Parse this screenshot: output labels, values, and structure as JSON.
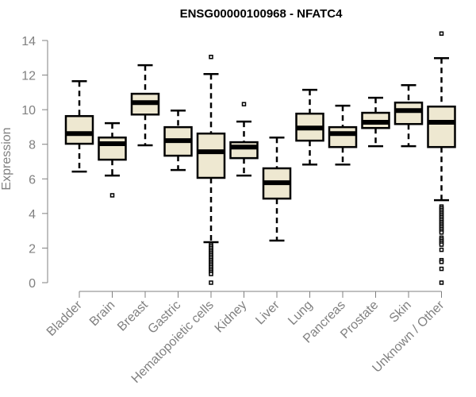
{
  "chart_data": {
    "type": "box",
    "title": "ENSG00000100968 - NFATC4",
    "xlabel": "",
    "ylabel": "Expression",
    "ylim": [
      0,
      14
    ],
    "yticks": [
      0,
      2,
      4,
      6,
      8,
      10,
      12,
      14
    ],
    "grid": false,
    "legend": "none",
    "box_fill": "#EEE8D1",
    "box_stroke": "#000000",
    "axis_color": "#808080",
    "categories": [
      "Bladder",
      "Brain",
      "Breast",
      "Gastric",
      "Hematopoietic cells",
      "Kidney",
      "Liver",
      "Lung",
      "Pancreas",
      "Prostate",
      "Skin",
      "Unknown / Other"
    ],
    "boxes": [
      {
        "name": "Bladder",
        "whisker_low": 6.42,
        "q1": 8.03,
        "median": 8.62,
        "q3": 9.63,
        "whisker_high": 11.65,
        "outliers": []
      },
      {
        "name": "Brain",
        "whisker_low": 6.19,
        "q1": 7.11,
        "median": 8.03,
        "q3": 8.39,
        "whisker_high": 9.22,
        "outliers": [
          5.05
        ]
      },
      {
        "name": "Breast",
        "whisker_low": 7.94,
        "q1": 9.72,
        "median": 10.41,
        "q3": 10.92,
        "whisker_high": 12.57,
        "outliers": []
      },
      {
        "name": "Gastric",
        "whisker_low": 6.51,
        "q1": 7.34,
        "median": 8.21,
        "q3": 8.99,
        "whisker_high": 9.95,
        "outliers": []
      },
      {
        "name": "Hematopoietic cells",
        "whisker_low": 2.34,
        "q1": 6.06,
        "median": 7.57,
        "q3": 8.62,
        "whisker_high": 12.06,
        "outliers": [
          13.05,
          2.2,
          2.1,
          2.0,
          1.9,
          1.8,
          1.7,
          1.6,
          1.5,
          1.4,
          1.3,
          1.2,
          1.1,
          1.0,
          0.9,
          0.8,
          0.7,
          0.6,
          0.5,
          0.0
        ]
      },
      {
        "name": "Kidney",
        "whisker_low": 6.19,
        "q1": 7.2,
        "median": 7.84,
        "q3": 8.12,
        "whisker_high": 9.31,
        "outliers": [
          10.32
        ]
      },
      {
        "name": "Liver",
        "whisker_low": 2.43,
        "q1": 4.86,
        "median": 5.78,
        "q3": 6.61,
        "whisker_high": 8.39,
        "outliers": []
      },
      {
        "name": "Lung",
        "whisker_low": 6.83,
        "q1": 8.21,
        "median": 8.94,
        "q3": 9.77,
        "whisker_high": 11.15,
        "outliers": []
      },
      {
        "name": "Pancreas",
        "whisker_low": 6.83,
        "q1": 7.84,
        "median": 8.62,
        "q3": 8.99,
        "whisker_high": 10.23,
        "outliers": []
      },
      {
        "name": "Prostate",
        "whisker_low": 7.89,
        "q1": 8.94,
        "median": 9.27,
        "q3": 9.82,
        "whisker_high": 10.69,
        "outliers": []
      },
      {
        "name": "Skin",
        "whisker_low": 7.89,
        "q1": 9.17,
        "median": 9.95,
        "q3": 10.41,
        "whisker_high": 11.42,
        "outliers": []
      },
      {
        "name": "Unknown / Other",
        "whisker_low": 4.77,
        "q1": 7.84,
        "median": 9.27,
        "q3": 10.18,
        "whisker_high": 12.98,
        "outliers": [
          14.4,
          4.4,
          4.3,
          4.2,
          4.1,
          4.0,
          3.9,
          3.8,
          3.7,
          3.6,
          3.5,
          3.4,
          3.3,
          3.2,
          3.1,
          3.0,
          2.9,
          2.6,
          2.5,
          2.4,
          2.3,
          2.2,
          1.9,
          1.3,
          1.2,
          0.8,
          0.0
        ]
      }
    ]
  }
}
